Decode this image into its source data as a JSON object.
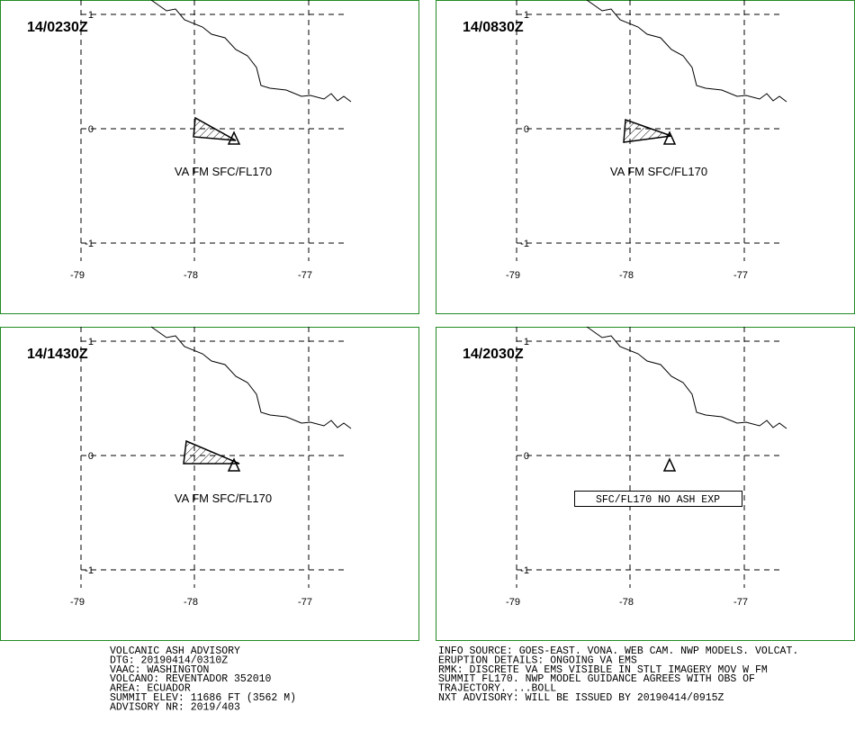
{
  "panels": [
    {
      "time": "14/0230Z",
      "annotation": "VA FM SFC/FL170",
      "lat_labels": [
        "1",
        "0",
        "-1"
      ],
      "lon_labels": [
        "-79",
        "-78",
        "-77"
      ]
    },
    {
      "time": "14/0830Z",
      "annotation": "VA FM SFC/FL170",
      "lat_labels": [
        "1",
        "0",
        "-1"
      ],
      "lon_labels": [
        "-79",
        "-78",
        "-77"
      ]
    },
    {
      "time": "14/1430Z",
      "annotation": "VA FM SFC/FL170",
      "lat_labels": [
        "1",
        "0",
        "-1"
      ],
      "lon_labels": [
        "-79",
        "-78",
        "-77"
      ]
    },
    {
      "time": "14/2030Z",
      "annotation": "SFC/FL170 NO ASH EXP",
      "lat_labels": [
        "1",
        "0",
        "-1"
      ],
      "lon_labels": [
        "-79",
        "-78",
        "-77"
      ]
    }
  ],
  "footer": {
    "left": [
      "VOLCANIC ASH ADVISORY",
      "DTG: 20190414/0310Z",
      "VAAC: WASHINGTON",
      "VOLCANO: REVENTADOR 352010",
      "AREA: ECUADOR",
      "SUMMIT ELEV: 11686 FT (3562 M)",
      "ADVISORY NR: 2019/403"
    ],
    "right": [
      "INFO SOURCE: GOES-EAST. VONA. WEB CAM. NWP MODELS. VOLCAT.",
      "ERUPTION DETAILS: ONGOING VA EMS",
      "RMK: DISCRETE VA EMS VISIBLE IN STLT IMAGERY MOV W FM",
      "SUMMIT FL170. NWP MODEL GUIDANCE AGREES WITH OBS OF",
      "TRAJECTORY. ...BOLL",
      "NXT ADVISORY: WILL BE ISSUED BY 20190414/0915Z"
    ]
  }
}
